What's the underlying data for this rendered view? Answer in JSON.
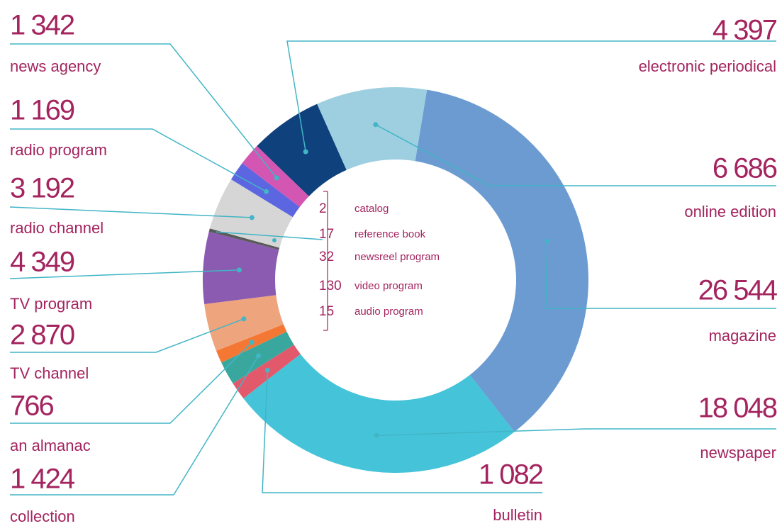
{
  "chart_data": {
    "type": "donut",
    "categories": [
      "electronic periodical",
      "online edition",
      "magazine",
      "newspaper",
      "bulletin",
      "collection",
      "an almanac",
      "TV channel",
      "TV program",
      "radio channel",
      "radio program",
      "news agency"
    ],
    "values": [
      4397,
      6686,
      26544,
      18048,
      1082,
      1424,
      766,
      2870,
      4349,
      3192,
      1169,
      1342
    ],
    "value_labels": [
      "4 397",
      "6 686",
      "26 544",
      "18 048",
      "1 082",
      "1 424",
      "766",
      "2 870",
      "4 349",
      "3 192",
      "1 169",
      "1 342"
    ],
    "colors": [
      "#0f417c",
      "#9dcfe0",
      "#6b9bd1",
      "#45c3d9",
      "#e2596b",
      "#3aa79f",
      "#f47834",
      "#eea47c",
      "#8a5bb0",
      "#d6d6d6",
      "#5b66e0",
      "#d256b2"
    ],
    "inset": {
      "categories": [
        "catalog",
        "reference book",
        "newsreel program",
        "video program",
        "audio program"
      ],
      "values": [
        2,
        17,
        32,
        130,
        15
      ],
      "color": "#5a5a5a"
    }
  }
}
